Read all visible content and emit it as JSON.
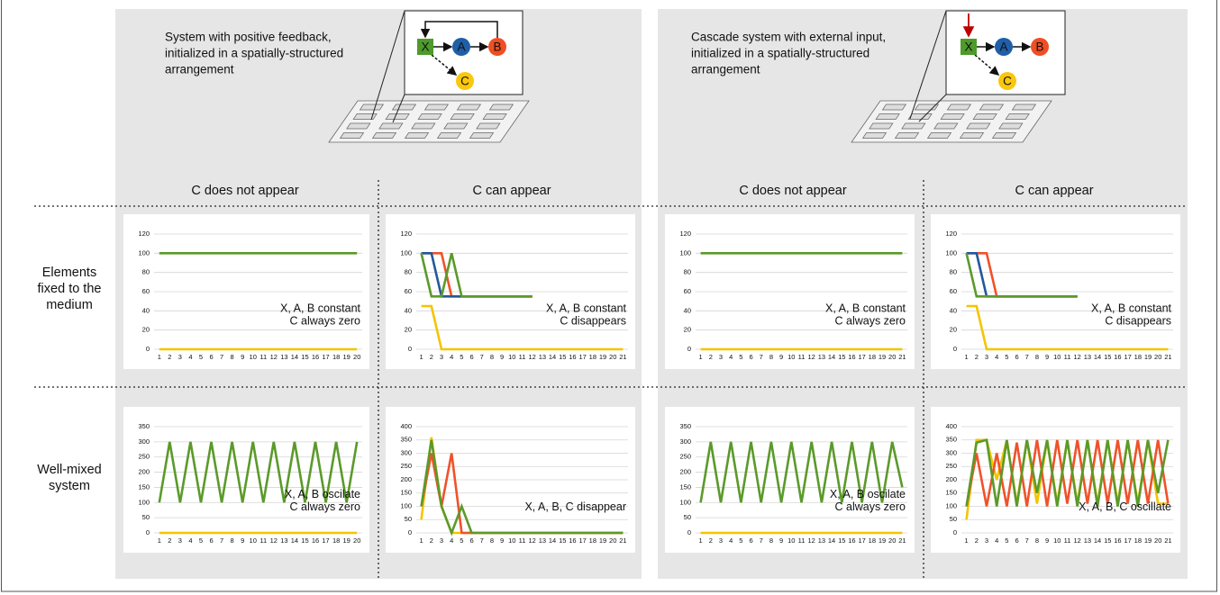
{
  "panels": [
    {
      "title": [
        "System with positive feedback,",
        "initialized in a spatially-structured",
        "arrangement"
      ],
      "diagram": [
        "X",
        "A",
        "B",
        "C"
      ]
    },
    {
      "title": [
        "Cascade system with external input,",
        "initialized in a spatially-structured",
        "arrangement"
      ],
      "diagram": [
        "X",
        "A",
        "B",
        "C"
      ]
    }
  ],
  "column_headers": [
    "C does not appear",
    "C can appear",
    "C does not appear",
    "C can appear"
  ],
  "row_labels": [
    [
      "Elements",
      "fixed to the",
      "medium"
    ],
    [
      "Well-mixed",
      "system"
    ]
  ],
  "chart_data": [
    {
      "type": "line",
      "categories": [
        1,
        2,
        3,
        4,
        5,
        6,
        7,
        8,
        9,
        10,
        11,
        12,
        13,
        14,
        15,
        16,
        17,
        18,
        19,
        20
      ],
      "ylim": [
        0,
        120
      ],
      "yticks": [
        0,
        20,
        40,
        60,
        80,
        100,
        120
      ],
      "grid": true,
      "series": [
        {
          "color": "#5b9a2a",
          "values": [
            100,
            100,
            100,
            100,
            100,
            100,
            100,
            100,
            100,
            100,
            100,
            100,
            100,
            100,
            100,
            100,
            100,
            100,
            100,
            100
          ]
        },
        {
          "color": "#f5c400",
          "values": [
            0,
            0,
            0,
            0,
            0,
            0,
            0,
            0,
            0,
            0,
            0,
            0,
            0,
            0,
            0,
            0,
            0,
            0,
            0,
            0
          ]
        }
      ],
      "annotation": [
        "X, A, B constant",
        "C always zero"
      ]
    },
    {
      "type": "line",
      "categories": [
        1,
        2,
        3,
        4,
        5,
        6,
        7,
        8,
        9,
        10,
        11,
        12,
        13,
        14,
        15,
        16,
        17,
        18,
        19,
        20,
        21
      ],
      "ylim": [
        0,
        120
      ],
      "yticks": [
        0,
        20,
        40,
        60,
        80,
        100,
        120
      ],
      "grid": true,
      "series": [
        {
          "color": "#f5c400",
          "values": [
            45,
            45,
            0,
            0,
            0,
            0,
            0,
            0,
            0,
            0,
            0,
            0,
            0,
            0,
            0,
            0,
            0,
            0,
            0,
            0,
            0
          ]
        },
        {
          "color": "#f0522a",
          "values": [
            100,
            100,
            100,
            55,
            55,
            55,
            55,
            55,
            55,
            55,
            55,
            55,
            null,
            null,
            null,
            null,
            null,
            null,
            null,
            null,
            null
          ]
        },
        {
          "color": "#23589a",
          "values": [
            100,
            100,
            55,
            55,
            55,
            55,
            55,
            55,
            55,
            55,
            55,
            55,
            null,
            null,
            null,
            null,
            null,
            null,
            null,
            null,
            null
          ]
        },
        {
          "color": "#5b9a2a",
          "values": [
            100,
            55,
            55,
            100,
            55,
            55,
            55,
            55,
            55,
            55,
            55,
            55,
            null,
            null,
            null,
            null,
            null,
            null,
            null,
            null,
            null
          ]
        }
      ],
      "annotation": [
        "X, A, B constant",
        "C disappears"
      ]
    },
    {
      "type": "line",
      "categories": [
        1,
        2,
        3,
        4,
        5,
        6,
        7,
        8,
        9,
        10,
        11,
        12,
        13,
        14,
        15,
        16,
        17,
        18,
        19,
        20,
        21
      ],
      "ylim": [
        0,
        120
      ],
      "yticks": [
        0,
        20,
        40,
        60,
        80,
        100,
        120
      ],
      "grid": true,
      "series": [
        {
          "color": "#5b9a2a",
          "values": [
            100,
            100,
            100,
            100,
            100,
            100,
            100,
            100,
            100,
            100,
            100,
            100,
            100,
            100,
            100,
            100,
            100,
            100,
            100,
            100,
            100
          ]
        },
        {
          "color": "#f5c400",
          "values": [
            0,
            0,
            0,
            0,
            0,
            0,
            0,
            0,
            0,
            0,
            0,
            0,
            0,
            0,
            0,
            0,
            0,
            0,
            0,
            0,
            0
          ]
        }
      ],
      "annotation": [
        "X, A, B constant",
        "C always zero"
      ]
    },
    {
      "type": "line",
      "categories": [
        1,
        2,
        3,
        4,
        5,
        6,
        7,
        8,
        9,
        10,
        11,
        12,
        13,
        14,
        15,
        16,
        17,
        18,
        19,
        20,
        21
      ],
      "ylim": [
        0,
        120
      ],
      "yticks": [
        0,
        20,
        40,
        60,
        80,
        100,
        120
      ],
      "grid": true,
      "series": [
        {
          "color": "#f5c400",
          "values": [
            45,
            45,
            0,
            0,
            0,
            0,
            0,
            0,
            0,
            0,
            0,
            0,
            0,
            0,
            0,
            0,
            0,
            0,
            0,
            0,
            0
          ]
        },
        {
          "color": "#f0522a",
          "values": [
            100,
            100,
            100,
            55,
            55,
            55,
            55,
            55,
            55,
            55,
            55,
            55,
            null,
            null,
            null,
            null,
            null,
            null,
            null,
            null,
            null
          ]
        },
        {
          "color": "#23589a",
          "values": [
            100,
            100,
            55,
            55,
            55,
            55,
            55,
            55,
            55,
            55,
            55,
            55,
            null,
            null,
            null,
            null,
            null,
            null,
            null,
            null,
            null
          ]
        },
        {
          "color": "#5b9a2a",
          "values": [
            100,
            55,
            55,
            55,
            55,
            55,
            55,
            55,
            55,
            55,
            55,
            55,
            null,
            null,
            null,
            null,
            null,
            null,
            null,
            null,
            null
          ]
        }
      ],
      "annotation": [
        "X, A, B constant",
        "C disappears"
      ]
    },
    {
      "type": "line",
      "categories": [
        1,
        2,
        3,
        4,
        5,
        6,
        7,
        8,
        9,
        10,
        11,
        12,
        13,
        14,
        15,
        16,
        17,
        18,
        19,
        20
      ],
      "ylim": [
        0,
        350
      ],
      "yticks": [
        0,
        50,
        100,
        150,
        200,
        250,
        300,
        350
      ],
      "grid": true,
      "series": [
        {
          "color": "#f5c400",
          "values": [
            0,
            0,
            0,
            0,
            0,
            0,
            0,
            0,
            0,
            0,
            0,
            0,
            0,
            0,
            0,
            0,
            0,
            0,
            0,
            0
          ]
        },
        {
          "color": "#5b9a2a",
          "values": [
            100,
            300,
            100,
            300,
            100,
            300,
            100,
            300,
            100,
            300,
            100,
            300,
            100,
            300,
            100,
            300,
            100,
            300,
            100,
            300
          ]
        }
      ],
      "annotation": [
        "X, A, B oscilate",
        "C always zero"
      ]
    },
    {
      "type": "line",
      "categories": [
        1,
        2,
        3,
        4,
        5,
        6,
        7,
        8,
        9,
        10,
        11,
        12,
        13,
        14,
        15,
        16,
        17,
        18,
        19,
        20,
        21
      ],
      "ylim": [
        0,
        400
      ],
      "yticks": [
        0,
        50,
        100,
        150,
        200,
        250,
        300,
        350,
        400
      ],
      "grid": true,
      "series": [
        {
          "color": "#f5c400",
          "values": [
            50,
            360,
            100,
            0,
            0,
            0,
            0,
            0,
            0,
            0,
            0,
            0,
            0,
            0,
            0,
            0,
            0,
            0,
            0,
            0,
            0
          ]
        },
        {
          "color": "#f0522a",
          "values": [
            100,
            300,
            100,
            300,
            0,
            0,
            0,
            0,
            0,
            0,
            0,
            0,
            0,
            0,
            0,
            0,
            0,
            0,
            0,
            0,
            0
          ]
        },
        {
          "color": "#5b9a2a",
          "values": [
            100,
            350,
            100,
            0,
            100,
            0,
            0,
            0,
            0,
            0,
            0,
            0,
            0,
            0,
            0,
            0,
            0,
            0,
            0,
            0,
            0
          ]
        }
      ],
      "annotation": [
        "X, A, B, C disappear"
      ]
    },
    {
      "type": "line",
      "categories": [
        1,
        2,
        3,
        4,
        5,
        6,
        7,
        8,
        9,
        10,
        11,
        12,
        13,
        14,
        15,
        16,
        17,
        18,
        19,
        20,
        21
      ],
      "ylim": [
        0,
        350
      ],
      "yticks": [
        0,
        50,
        100,
        150,
        200,
        250,
        300,
        350
      ],
      "grid": true,
      "series": [
        {
          "color": "#f5c400",
          "values": [
            0,
            0,
            0,
            0,
            0,
            0,
            0,
            0,
            0,
            0,
            0,
            0,
            0,
            0,
            0,
            0,
            0,
            0,
            0,
            0,
            0
          ]
        },
        {
          "color": "#5b9a2a",
          "values": [
            100,
            300,
            100,
            300,
            100,
            300,
            100,
            300,
            100,
            300,
            100,
            300,
            100,
            300,
            100,
            300,
            100,
            300,
            100,
            300,
            150
          ]
        }
      ],
      "annotation": [
        "X, A, B oscilate",
        "C always zero"
      ]
    },
    {
      "type": "line",
      "categories": [
        1,
        2,
        3,
        4,
        5,
        6,
        7,
        8,
        9,
        10,
        11,
        12,
        13,
        14,
        15,
        16,
        17,
        18,
        19,
        20,
        21
      ],
      "ylim": [
        0,
        400
      ],
      "yticks": [
        0,
        50,
        100,
        150,
        200,
        250,
        300,
        350,
        400
      ],
      "grid": true,
      "series": [
        {
          "color": "#f5c400",
          "values": [
            50,
            350,
            350,
            200,
            350,
            110,
            350,
            110,
            350,
            110,
            350,
            110,
            350,
            110,
            350,
            110,
            350,
            110,
            350,
            110,
            110
          ]
        },
        {
          "color": "#f0522a",
          "values": [
            100,
            300,
            100,
            300,
            100,
            340,
            100,
            350,
            100,
            350,
            110,
            350,
            110,
            350,
            110,
            350,
            110,
            350,
            110,
            350,
            110
          ]
        },
        {
          "color": "#5b9a2a",
          "values": [
            100,
            340,
            350,
            100,
            350,
            100,
            350,
            150,
            350,
            100,
            350,
            100,
            350,
            100,
            350,
            100,
            350,
            100,
            350,
            150,
            350
          ]
        }
      ],
      "annotation": [
        "X, A, B, C oscillate"
      ]
    }
  ]
}
